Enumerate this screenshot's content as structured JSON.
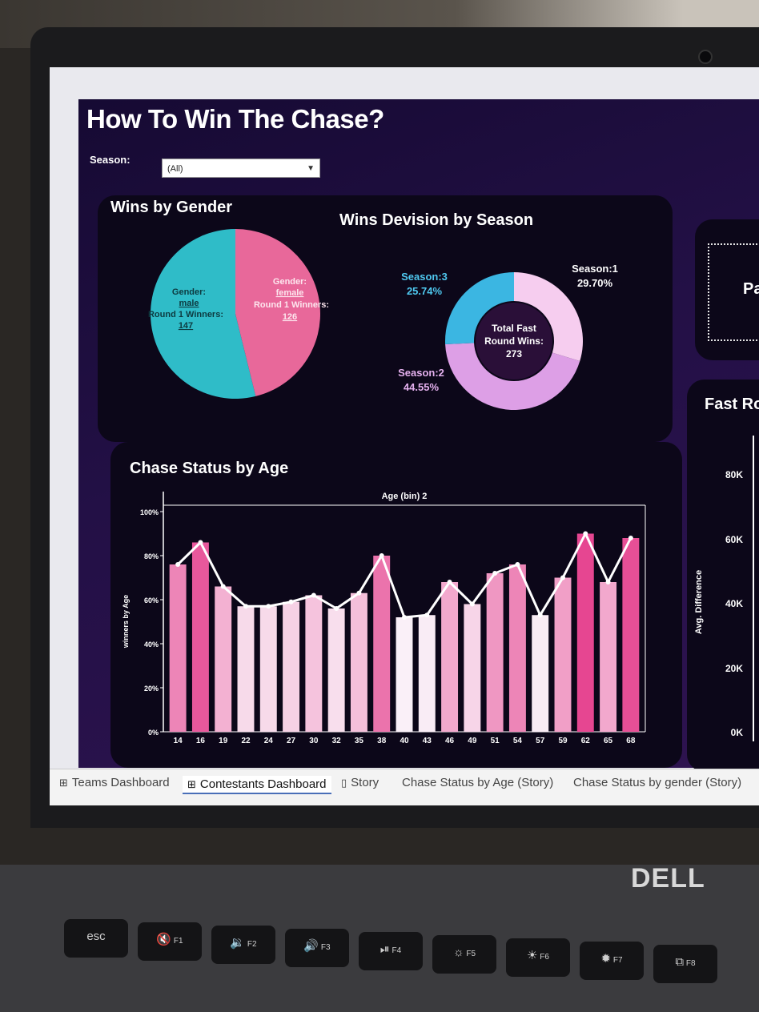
{
  "dashboard": {
    "title": "How To Win The Chase?",
    "season_label": "Season:",
    "season_value": "(All)"
  },
  "gender_panel": {
    "title": "Wins by Gender",
    "male": {
      "line1": "Gender:",
      "line2": "male",
      "line3": "Round 1 Winners:",
      "line4": "147"
    },
    "female": {
      "line1": "Gender:",
      "line2": "female",
      "line3": "Round 1 Winners:",
      "line4": "126"
    }
  },
  "season_panel": {
    "title": "Wins Devision by Season",
    "s1": {
      "name": "Season:1",
      "pct": "29.70%"
    },
    "s2": {
      "name": "Season:2",
      "pct": "44.55%"
    },
    "s3": {
      "name": "Season:3",
      "pct": "25.74%"
    },
    "center": {
      "line1": "Total Fast",
      "line2": "Round Wins:",
      "line3": "273"
    }
  },
  "right_panel": {
    "box_text": "Pa",
    "chart_title": "Fast Ro",
    "ylabel": "Avg. Difference",
    "ticks": [
      "80K",
      "60K",
      "40K",
      "20K",
      "0K"
    ]
  },
  "chart_data": [
    {
      "type": "pie",
      "categories": [
        "male",
        "female"
      ],
      "values": [
        147,
        126
      ],
      "title": "Wins by Gender"
    },
    {
      "type": "pie",
      "categories": [
        "Season:1",
        "Season:2",
        "Season:3"
      ],
      "values": [
        29.7,
        44.55,
        25.74
      ],
      "title": "Wins Devision by Season"
    },
    {
      "type": "bar",
      "title": "Chase Status by Age",
      "xlabel": "Age (bin) 2",
      "ylabel": "winners by Age",
      "ylim": [
        0,
        100
      ],
      "ytick_labels": [
        "100%",
        "80%",
        "60%",
        "40%",
        "20%",
        "0%"
      ],
      "categories": [
        "14",
        "16",
        "19",
        "22",
        "24",
        "27",
        "30",
        "32",
        "35",
        "38",
        "40",
        "43",
        "46",
        "49",
        "51",
        "54",
        "57",
        "59",
        "62",
        "65",
        "68"
      ],
      "values": [
        76,
        86,
        66,
        57,
        57,
        59,
        62,
        56,
        63,
        80,
        52,
        53,
        68,
        58,
        72,
        76,
        53,
        70,
        90,
        68,
        88
      ],
      "line_values": [
        76,
        86,
        66,
        57,
        57,
        59,
        62,
        56,
        63,
        80,
        52,
        53,
        68,
        58,
        72,
        76,
        53,
        70,
        90,
        68,
        88
      ]
    }
  ],
  "tabs": [
    {
      "icon": "grid-icon",
      "label": "Teams Dashboard"
    },
    {
      "icon": "grid-icon",
      "label": "Contestants Dashboard"
    },
    {
      "icon": "book-icon",
      "label": "Story"
    },
    {
      "icon": "",
      "label": "Chase Status by Age (Story)"
    },
    {
      "icon": "",
      "label": "Chase Status by gender (Story)"
    }
  ],
  "laptop": {
    "brand": "DELL",
    "keys": [
      {
        "label": "esc",
        "sub": ""
      },
      {
        "label": "🔇",
        "sub": "F1"
      },
      {
        "label": "🔉",
        "sub": "F2"
      },
      {
        "label": "🔊",
        "sub": "F3"
      },
      {
        "label": "⏯",
        "sub": "F4"
      },
      {
        "label": "☼",
        "sub": "F5"
      },
      {
        "label": "☀",
        "sub": "F6"
      },
      {
        "label": "✹",
        "sub": "F7"
      },
      {
        "label": "⧉",
        "sub": "F8"
      }
    ]
  },
  "colors": {
    "male": "#2fbcc8",
    "female": "#e8689a",
    "s1": "#f6cdef",
    "s2": "#dd9fe6",
    "s3": "#3bb6e2",
    "center": "#2a0f38"
  }
}
